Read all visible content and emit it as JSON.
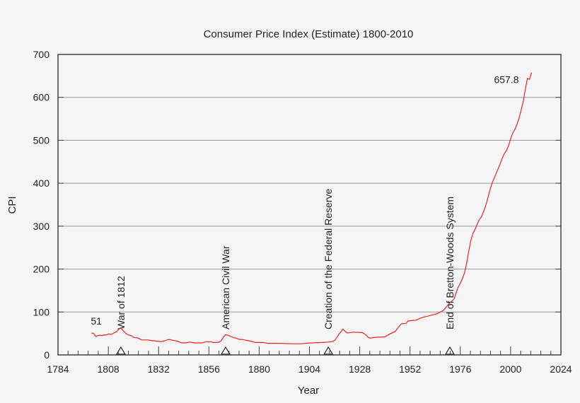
{
  "chart_data": {
    "type": "line",
    "title": "Consumer Price Index (Estimate) 1800-2010",
    "xlabel": "Year",
    "ylabel": "CPI",
    "xlim": [
      1784,
      2024
    ],
    "ylim": [
      0,
      700
    ],
    "xticks": [
      1784,
      1808,
      1832,
      1856,
      1880,
      1904,
      1928,
      1952,
      1976,
      2000,
      2024
    ],
    "yticks": [
      0,
      100,
      200,
      300,
      400,
      500,
      600,
      700
    ],
    "grid": "horizontal",
    "line_color": "#ee2222",
    "series": [
      {
        "points": [
          [
            1800,
            51
          ],
          [
            1801,
            50
          ],
          [
            1802,
            43
          ],
          [
            1803,
            45
          ],
          [
            1804,
            46
          ],
          [
            1805,
            45
          ],
          [
            1806,
            47
          ],
          [
            1807,
            46
          ],
          [
            1808,
            49
          ],
          [
            1809,
            48
          ],
          [
            1810,
            49
          ],
          [
            1811,
            52
          ],
          [
            1812,
            54
          ],
          [
            1813,
            60
          ],
          [
            1814,
            63
          ],
          [
            1815,
            57
          ],
          [
            1816,
            52
          ],
          [
            1817,
            48
          ],
          [
            1818,
            46
          ],
          [
            1819,
            45
          ],
          [
            1820,
            41
          ],
          [
            1821,
            40
          ],
          [
            1822,
            40
          ],
          [
            1823,
            37
          ],
          [
            1824,
            35
          ],
          [
            1825,
            35
          ],
          [
            1826,
            35
          ],
          [
            1827,
            35
          ],
          [
            1828,
            34
          ],
          [
            1829,
            33
          ],
          [
            1830,
            33
          ],
          [
            1831,
            32
          ],
          [
            1832,
            32
          ],
          [
            1833,
            31
          ],
          [
            1834,
            32
          ],
          [
            1835,
            33
          ],
          [
            1836,
            35
          ],
          [
            1837,
            36
          ],
          [
            1838,
            35
          ],
          [
            1839,
            34
          ],
          [
            1840,
            33
          ],
          [
            1841,
            32
          ],
          [
            1842,
            30
          ],
          [
            1843,
            28
          ],
          [
            1844,
            28
          ],
          [
            1845,
            28
          ],
          [
            1846,
            29
          ],
          [
            1847,
            30
          ],
          [
            1848,
            29
          ],
          [
            1849,
            28
          ],
          [
            1850,
            28
          ],
          [
            1851,
            28
          ],
          [
            1852,
            28
          ],
          [
            1853,
            28
          ],
          [
            1854,
            30
          ],
          [
            1855,
            31
          ],
          [
            1856,
            30
          ],
          [
            1857,
            31
          ],
          [
            1858,
            29
          ],
          [
            1859,
            29
          ],
          [
            1860,
            29
          ],
          [
            1861,
            30
          ],
          [
            1862,
            34
          ],
          [
            1863,
            42
          ],
          [
            1864,
            47
          ],
          [
            1865,
            46
          ],
          [
            1866,
            44
          ],
          [
            1867,
            42
          ],
          [
            1868,
            40
          ],
          [
            1869,
            39
          ],
          [
            1870,
            37
          ],
          [
            1871,
            36
          ],
          [
            1872,
            36
          ],
          [
            1873,
            35
          ],
          [
            1874,
            34
          ],
          [
            1875,
            33
          ],
          [
            1876,
            32
          ],
          [
            1877,
            31
          ],
          [
            1878,
            29
          ],
          [
            1879,
            29
          ],
          [
            1880,
            29
          ],
          [
            1882,
            29
          ],
          [
            1884,
            27
          ],
          [
            1886,
            27
          ],
          [
            1890,
            27
          ],
          [
            1895,
            26
          ],
          [
            1900,
            26
          ],
          [
            1905,
            28
          ],
          [
            1910,
            29
          ],
          [
            1913,
            30
          ],
          [
            1915,
            31
          ],
          [
            1916,
            34
          ],
          [
            1917,
            40
          ],
          [
            1918,
            48
          ],
          [
            1919,
            54
          ],
          [
            1920,
            60
          ],
          [
            1921,
            55
          ],
          [
            1922,
            51
          ],
          [
            1925,
            53
          ],
          [
            1929,
            52
          ],
          [
            1930,
            50
          ],
          [
            1931,
            46
          ],
          [
            1932,
            41
          ],
          [
            1933,
            39
          ],
          [
            1935,
            41
          ],
          [
            1940,
            42
          ],
          [
            1942,
            48
          ],
          [
            1945,
            55
          ],
          [
            1947,
            68
          ],
          [
            1948,
            73
          ],
          [
            1950,
            73
          ],
          [
            1951,
            79
          ],
          [
            1953,
            80
          ],
          [
            1955,
            81
          ],
          [
            1957,
            86
          ],
          [
            1960,
            90
          ],
          [
            1965,
            96
          ],
          [
            1968,
            104
          ],
          [
            1970,
            116
          ],
          [
            1971,
            121
          ],
          [
            1973,
            130
          ],
          [
            1974,
            145
          ],
          [
            1975,
            158
          ],
          [
            1976,
            167
          ],
          [
            1977,
            178
          ],
          [
            1978,
            191
          ],
          [
            1979,
            213
          ],
          [
            1980,
            241
          ],
          [
            1981,
            266
          ],
          [
            1982,
            283
          ],
          [
            1983,
            292
          ],
          [
            1984,
            304
          ],
          [
            1985,
            315
          ],
          [
            1986,
            321
          ],
          [
            1987,
            333
          ],
          [
            1988,
            346
          ],
          [
            1989,
            363
          ],
          [
            1990,
            382
          ],
          [
            1991,
            398
          ],
          [
            1992,
            410
          ],
          [
            1993,
            422
          ],
          [
            1994,
            433
          ],
          [
            1995,
            445
          ],
          [
            1996,
            458
          ],
          [
            1997,
            469
          ],
          [
            1998,
            476
          ],
          [
            1999,
            487
          ],
          [
            2000,
            503
          ],
          [
            2001,
            517
          ],
          [
            2002,
            525
          ],
          [
            2003,
            537
          ],
          [
            2004,
            551
          ],
          [
            2005,
            570
          ],
          [
            2006,
            590
          ],
          [
            2007,
            618
          ],
          [
            2008,
            644
          ],
          [
            2009,
            642
          ],
          [
            2010,
            657.8
          ]
        ]
      }
    ],
    "annotations": [
      {
        "text": "51",
        "x": 1800,
        "y": 51
      },
      {
        "text": "657.8",
        "x": 2010,
        "y": 657.8
      }
    ],
    "events": [
      {
        "label": "War of 1812",
        "x": 1814
      },
      {
        "label": "American Civil War",
        "x": 1864
      },
      {
        "label": "Creation of the Federal Reserve",
        "x": 1913
      },
      {
        "label": "End of Bretton-Woods System",
        "x": 1971
      }
    ]
  }
}
